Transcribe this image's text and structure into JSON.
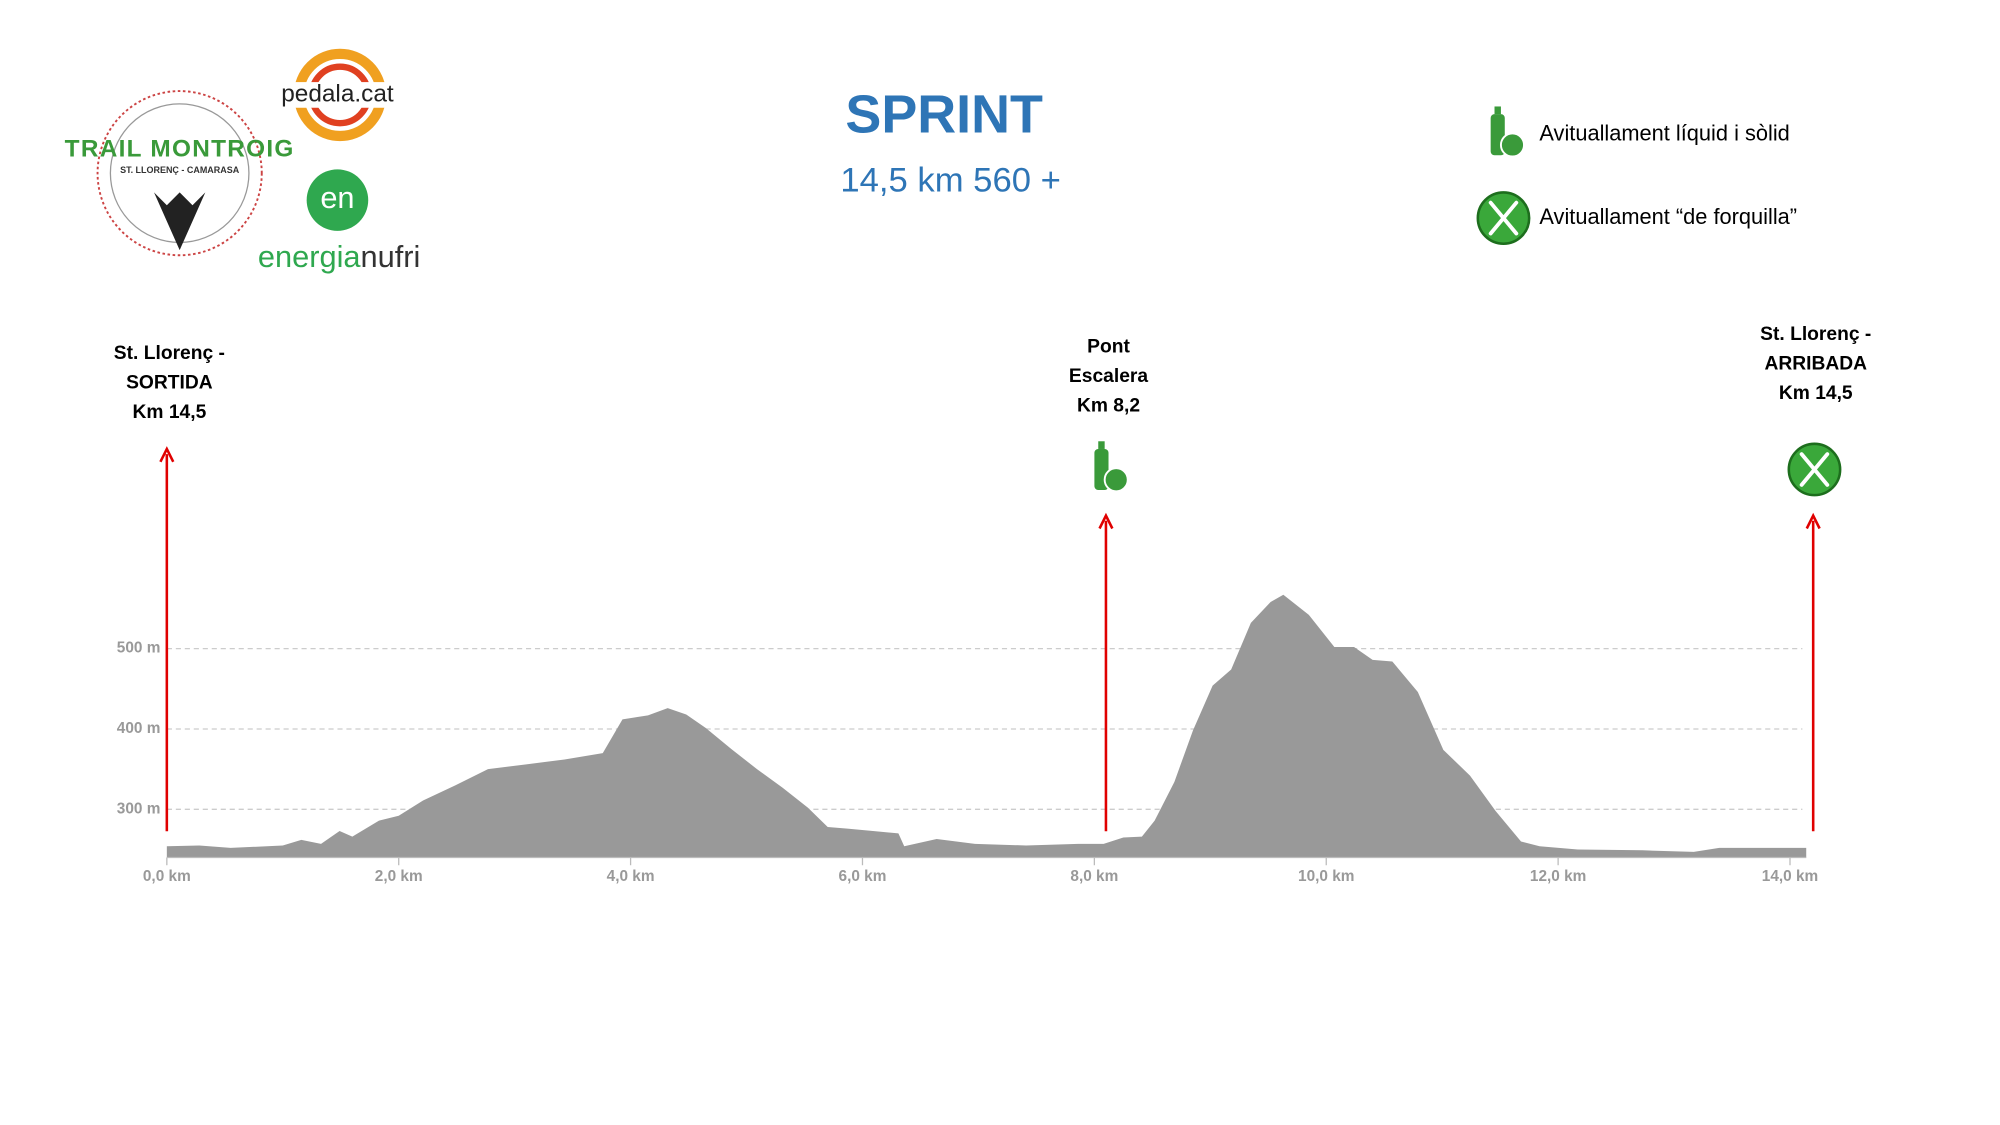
{
  "chart_data": {
    "type": "area",
    "title": "SPRINT",
    "subtitle": "14,5 km 560 +",
    "color": "#999999",
    "x": [
      0,
      0.28,
      0.55,
      1.0,
      1.16,
      1.33,
      1.49,
      1.6,
      1.83,
      2.0,
      2.21,
      2.49,
      2.77,
      3.1,
      3.43,
      3.76,
      3.93,
      4.15,
      4.32,
      4.48,
      4.65,
      4.87,
      5.09,
      5.31,
      5.53,
      5.7,
      5.87,
      6.09,
      6.31,
      6.36,
      6.64,
      6.97,
      7.41,
      7.86,
      8.08,
      8.25,
      8.41,
      8.52,
      8.69,
      8.85,
      9.02,
      9.18,
      9.35,
      9.52,
      9.63,
      9.85,
      10.07,
      10.24,
      10.4,
      10.57,
      10.79,
      11.01,
      11.24,
      11.46,
      11.68,
      11.84,
      12.17,
      12.73,
      13.17,
      13.39,
      13.83,
      14.14
    ],
    "values": [
      254,
      255,
      252,
      255,
      262,
      257,
      273,
      266,
      286,
      292,
      311,
      330,
      350,
      356,
      362,
      370,
      412,
      417,
      426,
      418,
      401,
      375,
      350,
      327,
      302,
      278,
      276,
      273,
      270,
      254,
      263,
      257,
      255,
      257,
      257,
      265,
      266,
      286,
      334,
      398,
      454,
      474,
      532,
      558,
      567,
      542,
      502,
      502,
      486,
      484,
      446,
      374,
      342,
      298,
      260,
      254,
      250,
      249,
      247,
      252,
      252,
      252
    ],
    "xlim": [
      0,
      14.14
    ],
    "ylim": [
      240,
      600
    ],
    "xticks": [
      {
        "value": 0,
        "label": "0,0 km"
      },
      {
        "value": 2,
        "label": "2,0 km"
      },
      {
        "value": 4,
        "label": "4,0 km"
      },
      {
        "value": 6,
        "label": "6,0 km"
      },
      {
        "value": 8,
        "label": "8,0 km"
      },
      {
        "value": 10,
        "label": "10,0 km"
      },
      {
        "value": 12,
        "label": "12,0 km"
      },
      {
        "value": 14,
        "label": "14,0 km"
      }
    ],
    "yticks": [
      {
        "value": 300,
        "label": "300 m"
      },
      {
        "value": 400,
        "label": "400 m"
      },
      {
        "value": 500,
        "label": "500 m"
      }
    ],
    "grid": true,
    "annotations": [
      {
        "x": 0,
        "lines": [
          "St. Llorenç -",
          "SORTIDA",
          "Km 14,5"
        ],
        "icon": "none"
      },
      {
        "x": 8.1,
        "lines": [
          "Pont",
          "Escalera",
          "Km 8,2"
        ],
        "icon": "liquid"
      },
      {
        "x": 14.2,
        "lines": [
          "St. Llorenç -",
          "ARRIBADA",
          "Km 14,5"
        ],
        "icon": "fork"
      }
    ],
    "legend": [
      {
        "icon": "liquid",
        "label": "Avituallament líquid i sòlid"
      },
      {
        "icon": "fork",
        "label": "Avituallament “de forquilla”"
      }
    ]
  },
  "logos": {
    "trail": "TRAIL MONTROIG",
    "trail_sub": "ST. LLORENÇ - CAMARASA",
    "pedala": "pedala.cat",
    "en": "en",
    "energia": "energia",
    "nufri": "nufri"
  }
}
